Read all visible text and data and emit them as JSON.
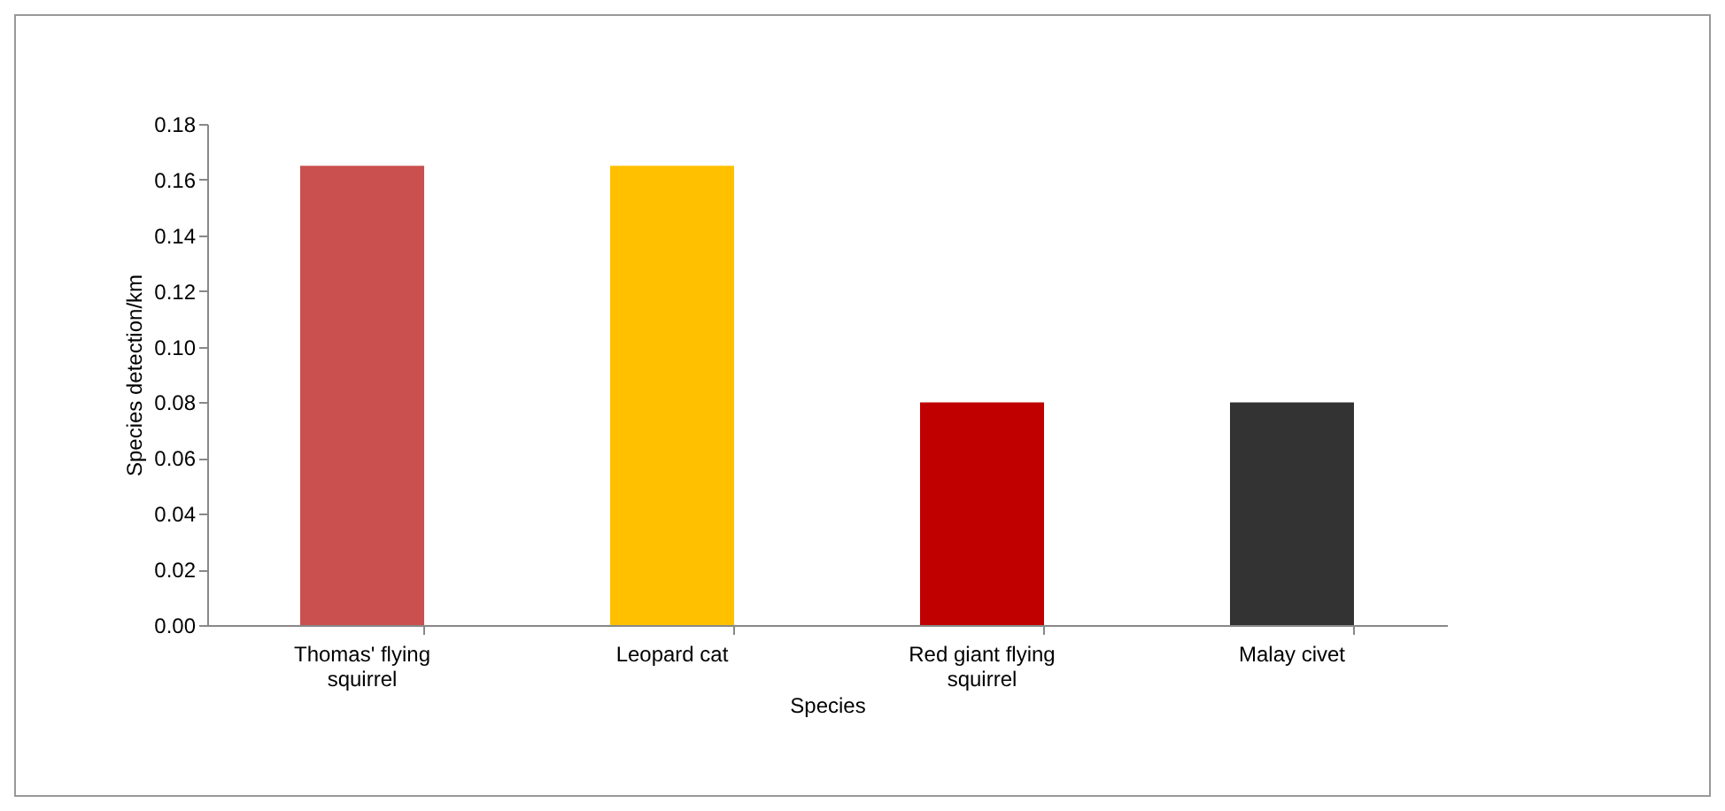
{
  "chart_data": {
    "type": "bar",
    "xlabel": "Species",
    "ylabel": "Species detection/km",
    "categories": [
      "Thomas' flying squirrel",
      "Leopard cat",
      "Red giant flying squirrel",
      "Malay civet"
    ],
    "values": [
      0.165,
      0.165,
      0.08,
      0.08
    ],
    "colors": [
      "#c9504e",
      "#ffc000",
      "#c00000",
      "#333333"
    ],
    "ylim": [
      0,
      0.18
    ],
    "yticks": [
      {
        "value": 0,
        "label": "0.00"
      },
      {
        "value": 0.02,
        "label": "0.02"
      },
      {
        "value": 0.04,
        "label": "0.04"
      },
      {
        "value": 0.06,
        "label": "0.06"
      },
      {
        "value": 0.08,
        "label": "0.08"
      },
      {
        "value": 0.1,
        "label": "0.10"
      },
      {
        "value": 0.12,
        "label": "0.12"
      },
      {
        "value": 0.14,
        "label": "0.14"
      },
      {
        "value": 0.16,
        "label": "0.16"
      },
      {
        "value": 0.18,
        "label": "0.18"
      }
    ],
    "grid": false
  }
}
